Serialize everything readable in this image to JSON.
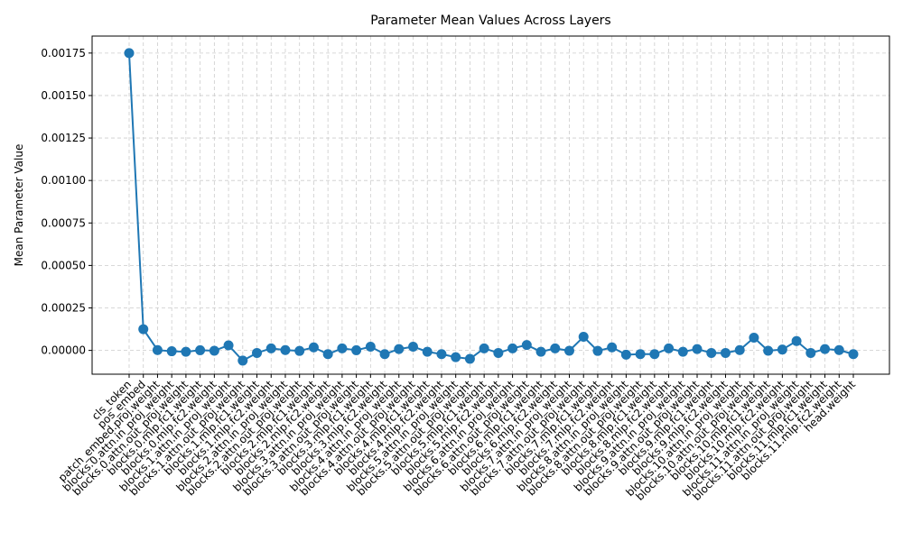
{
  "chart_data": {
    "type": "line",
    "title": "Parameter Mean Values Across Layers",
    "xlabel": "",
    "ylabel": "Mean Parameter Value",
    "grid": true,
    "ylim": [
      -0.00014,
      0.00185
    ],
    "yticks": [
      "0.00000",
      "0.00025",
      "0.00050",
      "0.00075",
      "0.00100",
      "0.00125",
      "0.00150",
      "0.00175"
    ],
    "ytick_values": [
      0,
      0.00025,
      0.0005,
      0.00075,
      0.001,
      0.00125,
      0.0015,
      0.00175
    ],
    "color": "#1f77b4",
    "categories": [
      "cls_token",
      "pos_embed",
      "patch_embed.proj.weight",
      "blocks.0.attn.in_proj_weight",
      "blocks.0.attn.out_proj.weight",
      "blocks.0.mlp.fc1.weight",
      "blocks.0.mlp.fc2.weight",
      "blocks.1.attn.in_proj_weight",
      "blocks.1.attn.out_proj.weight",
      "blocks.1.mlp.fc1.weight",
      "blocks.1.mlp.fc2.weight",
      "blocks.2.attn.in_proj_weight",
      "blocks.2.attn.out_proj.weight",
      "blocks.2.mlp.fc1.weight",
      "blocks.2.mlp.fc2.weight",
      "blocks.3.attn.in_proj_weight",
      "blocks.3.attn.out_proj.weight",
      "blocks.3.mlp.fc1.weight",
      "blocks.3.mlp.fc2.weight",
      "blocks.4.attn.in_proj_weight",
      "blocks.4.attn.out_proj.weight",
      "blocks.4.mlp.fc1.weight",
      "blocks.4.mlp.fc2.weight",
      "blocks.5.attn.in_proj_weight",
      "blocks.5.attn.out_proj.weight",
      "blocks.5.mlp.fc1.weight",
      "blocks.5.mlp.fc2.weight",
      "blocks.6.attn.in_proj_weight",
      "blocks.6.attn.out_proj.weight",
      "blocks.6.mlp.fc1.weight",
      "blocks.6.mlp.fc2.weight",
      "blocks.7.attn.in_proj_weight",
      "blocks.7.attn.out_proj.weight",
      "blocks.7.mlp.fc1.weight",
      "blocks.7.mlp.fc2.weight",
      "blocks.8.attn.in_proj_weight",
      "blocks.8.attn.out_proj.weight",
      "blocks.8.mlp.fc1.weight",
      "blocks.8.mlp.fc2.weight",
      "blocks.9.attn.in_proj_weight",
      "blocks.9.attn.out_proj.weight",
      "blocks.9.mlp.fc1.weight",
      "blocks.9.mlp.fc2.weight",
      "blocks.10.attn.in_proj_weight",
      "blocks.10.attn.out_proj.weight",
      "blocks.10.mlp.fc1.weight",
      "blocks.10.mlp.fc2.weight",
      "blocks.11.attn.in_proj_weight",
      "blocks.11.attn.out_proj.weight",
      "blocks.11.mlp.fc1.weight",
      "blocks.11.mlp.fc2.weight",
      "head.weight"
    ],
    "values": [
      0.00175,
      0.000125,
      2e-06,
      -5e-06,
      -8e-06,
      1e-06,
      -2e-06,
      3e-05,
      -6e-05,
      -1.5e-05,
      1.2e-05,
      2e-06,
      -3e-06,
      1.8e-05,
      -2.2e-05,
      1.2e-05,
      1e-06,
      2.2e-05,
      -2.2e-05,
      8e-06,
      2.2e-05,
      -8e-06,
      -2.2e-05,
      -4e-05,
      -5e-05,
      1.2e-05,
      -1.5e-05,
      1.2e-05,
      3.2e-05,
      -8e-06,
      1.2e-05,
      -2e-06,
      8e-05,
      -3e-06,
      1.8e-05,
      -2.5e-05,
      -2.2e-05,
      -2.2e-05,
      1.2e-05,
      -8e-06,
      8e-06,
      -1.5e-05,
      -1.5e-05,
      2e-06,
      7.5e-05,
      -2e-06,
      5e-06,
      5.5e-05,
      -1.5e-05,
      8e-06,
      2e-06,
      -2.2e-05
    ]
  }
}
